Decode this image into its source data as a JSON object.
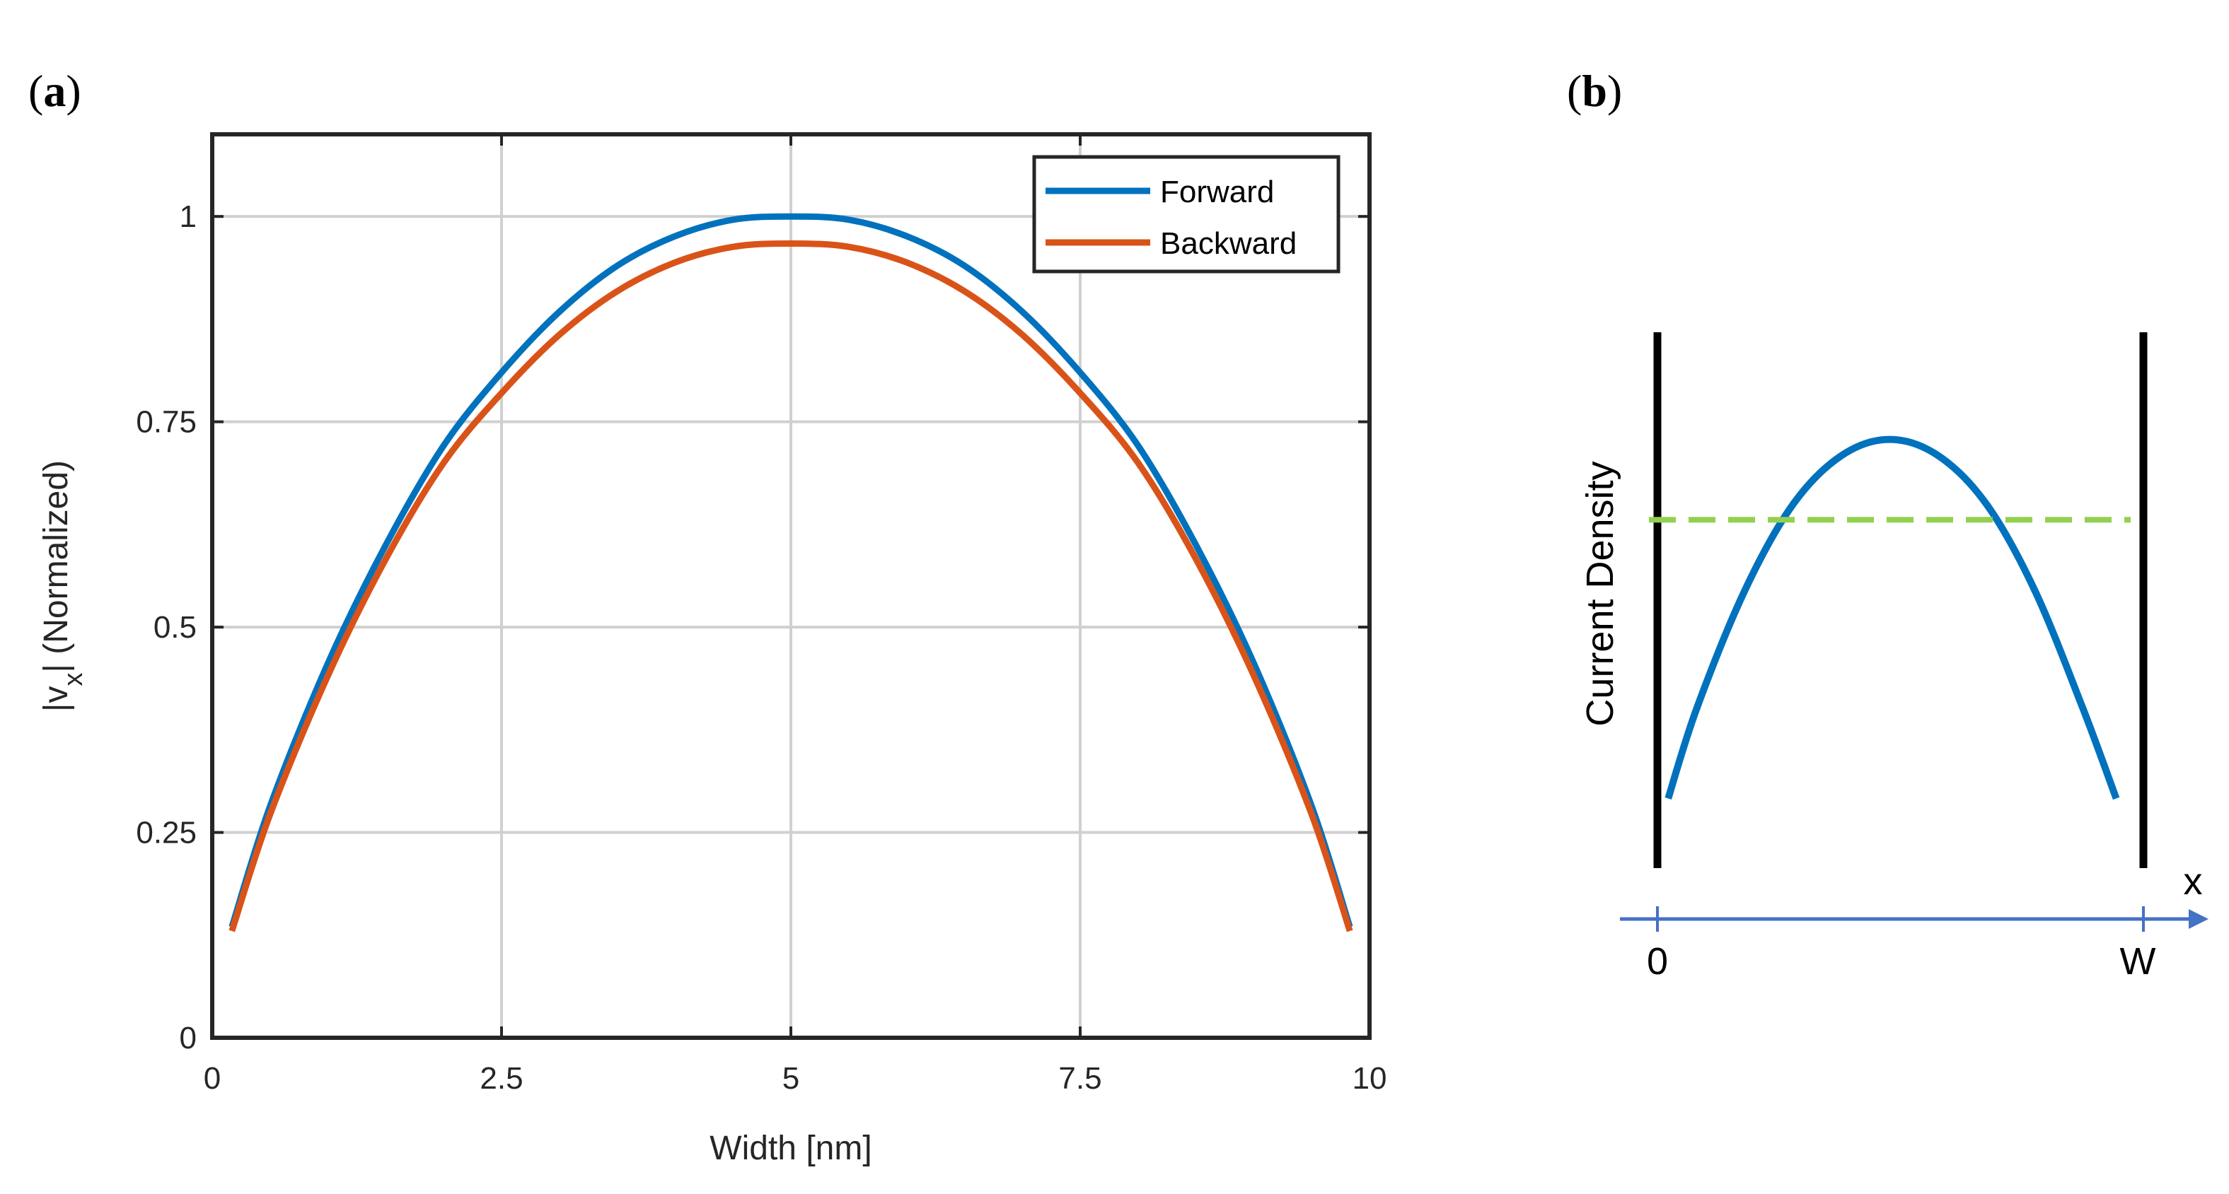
{
  "panel_labels": {
    "a": "a",
    "b": "b"
  },
  "chart_data": [
    {
      "type": "line",
      "panel": "a",
      "title": "",
      "xlabel": "Width [nm]",
      "ylabel_main": "|v",
      "ylabel_sub": "x",
      "ylabel_tail": "| (Normalized)",
      "xlim": [
        0,
        10
      ],
      "ylim": [
        0,
        1.1
      ],
      "xticks": [
        0,
        2.5,
        5,
        7.5,
        10
      ],
      "xtick_labels": [
        "0",
        "2.5",
        "5",
        "7.5",
        "10"
      ],
      "yticks": [
        0,
        0.25,
        0.5,
        0.75,
        1
      ],
      "ytick_labels": [
        "0",
        "0.25",
        "0.5",
        "0.75",
        "1"
      ],
      "grid": true,
      "legend_position": "top-right",
      "series": [
        {
          "name": "Forward",
          "color": "#0072BD",
          "x": [
            0.17,
            0.5,
            1.0,
            1.5,
            2.0,
            2.5,
            3.0,
            3.5,
            4.0,
            4.5,
            5.0,
            5.5,
            6.0,
            6.5,
            7.0,
            7.5,
            8.0,
            8.5,
            9.0,
            9.5,
            9.83
          ],
          "y": [
            0.135,
            0.282,
            0.456,
            0.6,
            0.721,
            0.81,
            0.884,
            0.94,
            0.976,
            0.996,
            1.0,
            0.996,
            0.976,
            0.94,
            0.884,
            0.81,
            0.721,
            0.6,
            0.456,
            0.282,
            0.135
          ]
        },
        {
          "name": "Backward",
          "color": "#D95319",
          "x": [
            0.17,
            0.5,
            1.0,
            1.5,
            2.0,
            2.5,
            3.0,
            3.5,
            4.0,
            4.5,
            5.0,
            5.5,
            6.0,
            6.5,
            7.0,
            7.5,
            8.0,
            8.5,
            9.0,
            9.5,
            9.83
          ],
          "y": [
            0.13,
            0.272,
            0.441,
            0.583,
            0.7,
            0.785,
            0.856,
            0.909,
            0.944,
            0.963,
            0.967,
            0.963,
            0.944,
            0.909,
            0.856,
            0.785,
            0.7,
            0.583,
            0.441,
            0.272,
            0.13
          ]
        }
      ]
    },
    {
      "type": "line",
      "panel": "b",
      "title": "",
      "xlabel": "x",
      "ylabel": "Current Density",
      "xlim": [
        0,
        1
      ],
      "ylim": [
        0,
        1
      ],
      "xtick_labels": [
        "0",
        "W"
      ],
      "grid": false,
      "series": [
        {
          "name": "current-density-profile",
          "color": "#0072BD",
          "x": [
            0.04,
            0.1,
            0.2,
            0.3,
            0.4,
            0.5,
            0.6,
            0.7,
            0.8,
            0.9,
            0.97
          ],
          "y": [
            0.13,
            0.3,
            0.52,
            0.68,
            0.77,
            0.8,
            0.77,
            0.68,
            0.52,
            0.3,
            0.13
          ]
        },
        {
          "name": "average-level",
          "color": "#92D050",
          "style": "dashed",
          "x": [
            0.0,
            1.0
          ],
          "y": [
            0.65,
            0.65
          ]
        }
      ]
    }
  ]
}
